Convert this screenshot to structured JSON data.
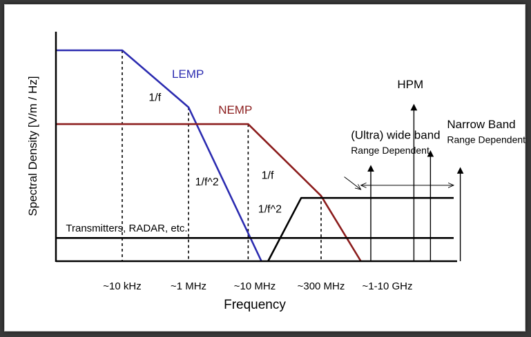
{
  "chart_data": {
    "type": "line",
    "xlabel": "Frequency",
    "ylabel": "Spectral Density [V/m / Hz]",
    "x_ticks": [
      {
        "label": "~10 kHz",
        "pos": 1
      },
      {
        "label": "~1 MHz",
        "pos": 2
      },
      {
        "label": "~10 MHz",
        "pos": 3
      },
      {
        "label": "~300 MHz",
        "pos": 4
      },
      {
        "label": "~1-10 GHz",
        "pos": 5
      }
    ],
    "xlim": [
      0,
      6
    ],
    "ylim": [
      0,
      10
    ],
    "grid": false,
    "colors": {
      "lemp": "#2b2bb0",
      "nemp": "#8b1c1c",
      "black": "#000000"
    },
    "series": [
      {
        "key": "lemp",
        "name": "LEMP",
        "color": "#2b2bb0",
        "points": [
          [
            0,
            10.0
          ],
          [
            1,
            10.0
          ],
          [
            2,
            7.3
          ],
          [
            3.1,
            0
          ]
        ]
      },
      {
        "key": "nemp",
        "name": "NEMP",
        "color": "#8b1c1c",
        "points": [
          [
            0,
            6.5
          ],
          [
            2.9,
            6.5
          ],
          [
            4.0,
            3.1
          ],
          [
            4.6,
            0
          ]
        ]
      },
      {
        "key": "transmitters",
        "name": "Transmitters, RADAR, etc.",
        "color": "#000000",
        "points": [
          [
            0,
            1.1
          ],
          [
            6,
            1.1
          ]
        ]
      },
      {
        "key": "uwb",
        "name": "(Ultra) wide band",
        "color": "#000000",
        "points": [
          [
            3.2,
            0
          ],
          [
            3.7,
            3.0
          ],
          [
            6,
            3.0
          ]
        ]
      }
    ],
    "guides": [
      {
        "x": 1.0,
        "y": 10.0
      },
      {
        "x": 2.0,
        "y": 7.3
      },
      {
        "x": 2.9,
        "y": 6.5
      },
      {
        "x": 4.0,
        "y": 3.1
      }
    ],
    "arrows": [
      {
        "x": 4.75,
        "y": 4.5
      },
      {
        "x": 5.4,
        "y": 7.4
      },
      {
        "x": 5.65,
        "y": 5.2
      },
      {
        "x": 6.1,
        "y": 4.4
      }
    ],
    "span": {
      "x1": 4.6,
      "x2": 6.0,
      "y": 3.6
    },
    "pointer": {
      "from": [
        4.35,
        4.0
      ],
      "to": [
        4.6,
        3.4
      ]
    },
    "annotations": [
      {
        "key": "lemp",
        "text": "LEMP",
        "x": 1.75,
        "y": 8.7,
        "color": "#2b2bb0",
        "size": 17
      },
      {
        "key": "lemp_slope1",
        "text": "1/f",
        "x": 1.4,
        "y": 7.6,
        "color": "#000000",
        "size": 16
      },
      {
        "key": "nemp",
        "text": "NEMP",
        "x": 2.45,
        "y": 7.0,
        "color": "#8b1c1c",
        "size": 17
      },
      {
        "key": "lemp_slope2",
        "text": "1/f^2",
        "x": 2.1,
        "y": 3.6,
        "color": "#000000",
        "size": 16
      },
      {
        "key": "nemp_slope1",
        "text": "1/f",
        "x": 3.1,
        "y": 3.9,
        "color": "#000000",
        "size": 16
      },
      {
        "key": "nemp_slope2",
        "text": "1/f^2",
        "x": 3.05,
        "y": 2.3,
        "color": "#000000",
        "size": 16
      },
      {
        "key": "transmitters",
        "text": "Transmitters, RADAR, etc.",
        "x": 0.15,
        "y": 1.4,
        "color": "#000000",
        "size": 15
      },
      {
        "key": "hpm",
        "text": "HPM",
        "x": 5.15,
        "y": 8.2,
        "color": "#000000",
        "size": 17
      },
      {
        "key": "uwb",
        "text": "(Ultra) wide band",
        "x": 4.45,
        "y": 5.8,
        "color": "#000000",
        "size": 17
      },
      {
        "key": "uwb_range",
        "text": "Range Dependent",
        "x": 4.45,
        "y": 5.1,
        "color": "#000000",
        "size": 14
      },
      {
        "key": "narrow",
        "text": "Narrow Band",
        "x": 5.9,
        "y": 6.3,
        "color": "#000000",
        "size": 17
      },
      {
        "key": "narrow_range",
        "text": "Range Dependent",
        "x": 5.9,
        "y": 5.6,
        "color": "#000000",
        "size": 14
      }
    ]
  }
}
